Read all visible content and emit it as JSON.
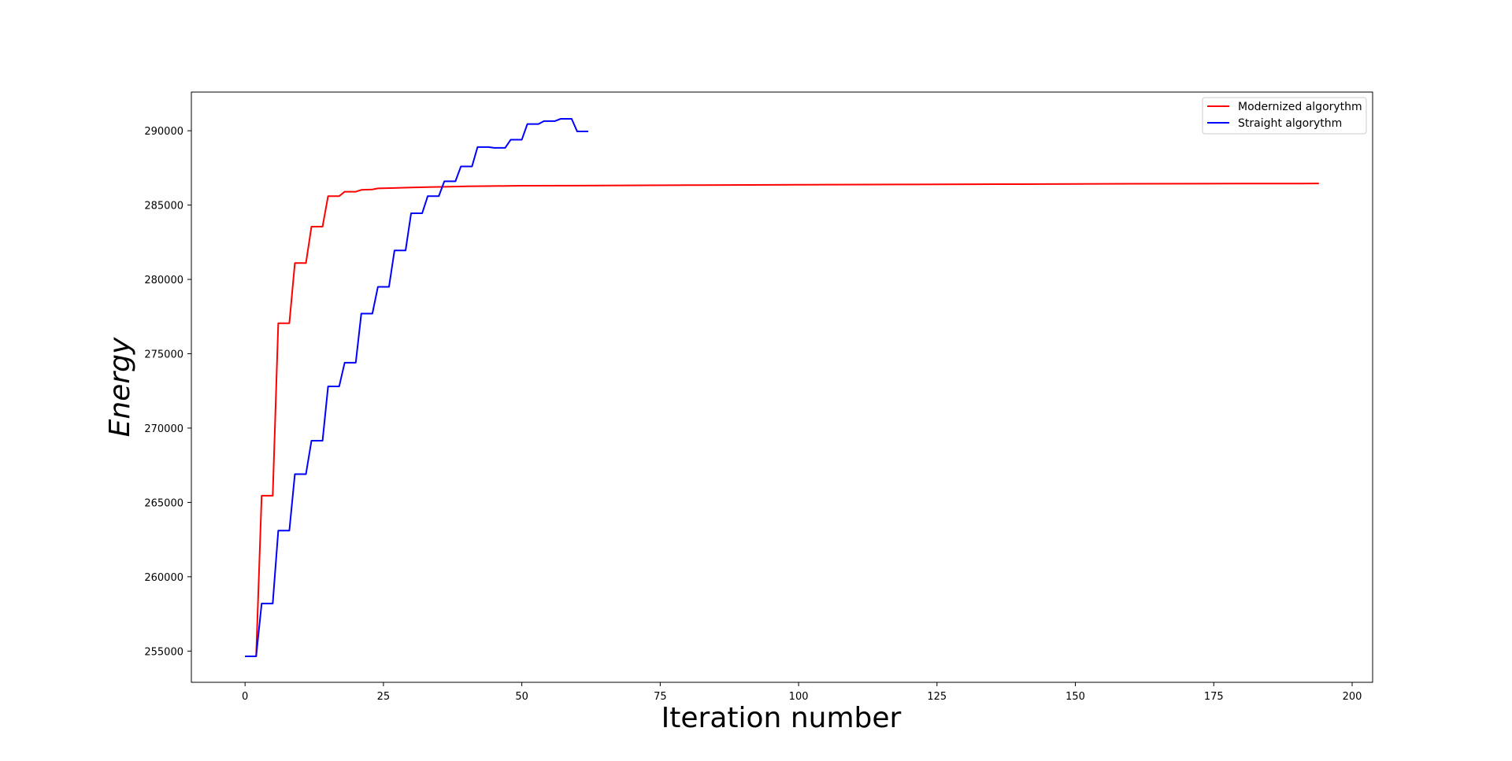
{
  "chart_data": {
    "type": "line",
    "title": "",
    "xlabel": "Iteration number",
    "ylabel": "Energy",
    "xlim": [
      -9.7,
      203.7
    ],
    "ylim": [
      252900,
      292600
    ],
    "x_ticks": [
      0,
      25,
      50,
      75,
      100,
      125,
      150,
      175,
      200
    ],
    "y_ticks": [
      255000,
      260000,
      265000,
      270000,
      275000,
      280000,
      285000,
      290000
    ],
    "grid": false,
    "legend_position": "top-right",
    "series": [
      {
        "name": "Modernized algorythm",
        "color": "#ff0000",
        "points": [
          [
            0,
            254650
          ],
          [
            2,
            254650
          ],
          [
            3,
            265450
          ],
          [
            5,
            265450
          ],
          [
            6,
            277050
          ],
          [
            8,
            277050
          ],
          [
            9,
            281100
          ],
          [
            11,
            281100
          ],
          [
            12,
            283550
          ],
          [
            14,
            283550
          ],
          [
            15,
            285600
          ],
          [
            17,
            285600
          ],
          [
            18,
            285900
          ],
          [
            20,
            285900
          ],
          [
            21,
            286020
          ],
          [
            23,
            286050
          ],
          [
            24,
            286120
          ],
          [
            27,
            286150
          ],
          [
            30,
            286180
          ],
          [
            33,
            286210
          ],
          [
            36,
            286230
          ],
          [
            40,
            286260
          ],
          [
            45,
            286280
          ],
          [
            50,
            286300
          ],
          [
            60,
            286310
          ],
          [
            80,
            286340
          ],
          [
            100,
            286370
          ],
          [
            120,
            286390
          ],
          [
            140,
            286410
          ],
          [
            160,
            286430
          ],
          [
            180,
            286445
          ],
          [
            194,
            286450
          ]
        ]
      },
      {
        "name": "Straight algorythm",
        "color": "#0000ff",
        "points": [
          [
            0,
            254650
          ],
          [
            2,
            254650
          ],
          [
            3,
            258200
          ],
          [
            5,
            258200
          ],
          [
            6,
            263100
          ],
          [
            8,
            263100
          ],
          [
            9,
            266900
          ],
          [
            11,
            266900
          ],
          [
            12,
            269150
          ],
          [
            14,
            269150
          ],
          [
            15,
            272800
          ],
          [
            17,
            272800
          ],
          [
            18,
            274400
          ],
          [
            20,
            274400
          ],
          [
            21,
            277700
          ],
          [
            23,
            277700
          ],
          [
            24,
            279500
          ],
          [
            26,
            279500
          ],
          [
            27,
            281950
          ],
          [
            29,
            281950
          ],
          [
            30,
            284450
          ],
          [
            32,
            284450
          ],
          [
            33,
            285600
          ],
          [
            35,
            285600
          ],
          [
            36,
            286600
          ],
          [
            38,
            286600
          ],
          [
            39,
            287600
          ],
          [
            41,
            287600
          ],
          [
            42,
            288900
          ],
          [
            44,
            288900
          ],
          [
            45,
            288850
          ],
          [
            47,
            288850
          ],
          [
            48,
            289400
          ],
          [
            50,
            289400
          ],
          [
            51,
            290450
          ],
          [
            53,
            290450
          ],
          [
            54,
            290650
          ],
          [
            56,
            290650
          ],
          [
            57,
            290800
          ],
          [
            59,
            290800
          ],
          [
            60,
            289950
          ],
          [
            62,
            289950
          ]
        ]
      }
    ]
  }
}
